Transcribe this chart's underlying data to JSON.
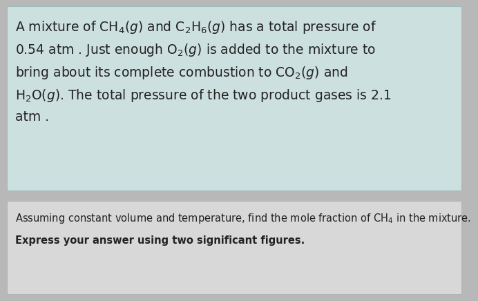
{
  "fig_width": 6.74,
  "fig_height": 4.29,
  "dpi": 100,
  "bg_color": "#b8b8b8",
  "box_bg_color": "#cce0df",
  "box_border_color": "#9dbdbc",
  "bottom_bg_color": "#d8d8d8",
  "bottom_border_color": "#aaaaaa",
  "text_color": "#222222",
  "main_fontsize": 13.5,
  "question_fontsize": 10.5,
  "answer_fontsize": 10.5,
  "line1": "A mixture of $\\mathregular{CH_4}$($\\mathit{g}$) and $\\mathregular{C_2H_6}$($\\mathit{g}$) has a total pressure of",
  "line2": "0.54 atm . Just enough $\\mathregular{O_2}$($\\mathit{g}$) is added to the mixture to",
  "line3": "bring about its complete combustion to $\\mathregular{CO_2}$($\\mathit{g}$) and",
  "line4": "$\\mathregular{H_2O}$($\\mathit{g}$). The total pressure of the two product gases is 2.1",
  "line5": "atm .",
  "question_line": "Assuming constant volume and temperature, find the mole fraction of $\\mathregular{CH_4}$ in the mixture.",
  "answer_line": "Express your answer using two significant figures."
}
